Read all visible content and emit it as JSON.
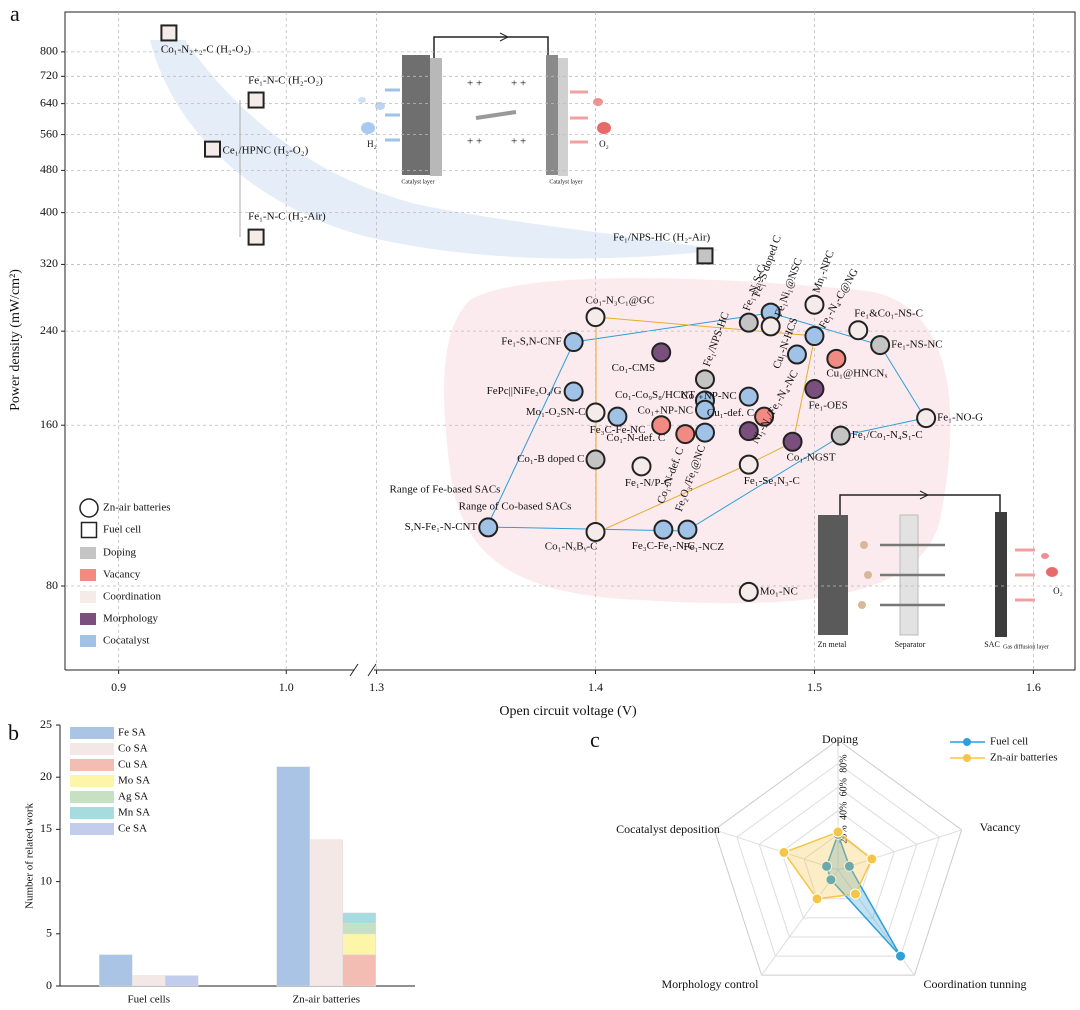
{
  "chart_data": [
    {
      "type": "scatter",
      "panel": "a",
      "xlabel": "Open circuit voltage (V)",
      "ylabel": "Power density (mW/cm²)",
      "yscale": "log",
      "grid": true,
      "xlim_segments": [
        [
          0.868,
          1.044
        ],
        [
          1.297,
          1.619
        ]
      ],
      "xticks": [
        0.9,
        {
          "value": 1,
          "label": "1.0"
        },
        1.3,
        1.4,
        1.5,
        1.6
      ],
      "ylim": [
        55.7,
        950
      ],
      "yticks": [
        80,
        160,
        240,
        320,
        400,
        480,
        560,
        640,
        720,
        800
      ],
      "x": [
        0.93,
        0.982,
        0.956,
        0.982,
        1.45,
        1.4,
        1.39,
        1.43,
        1.39,
        1.4,
        1.41,
        1.43,
        1.441,
        1.4,
        1.421,
        1.351,
        1.4,
        1.431,
        1.442,
        1.47,
        1.45,
        1.45,
        1.45,
        1.47,
        1.45,
        1.477,
        1.47,
        1.47,
        1.49,
        1.512,
        1.551,
        1.53,
        1.52,
        1.51,
        1.5,
        1.5,
        1.5,
        1.492,
        1.47,
        1.48,
        1.48
      ],
      "y": [
        868,
        650,
        526,
        360,
        332,
        255,
        229,
        219,
        185,
        169,
        166,
        160,
        154,
        138,
        134,
        103,
        101,
        102,
        102,
        78,
        195,
        178,
        171,
        181,
        155,
        166,
        156,
        135,
        149,
        153,
        165,
        226,
        241,
        213,
        187,
        269,
        235,
        217,
        249,
        260,
        245
      ],
      "labels": [
        "Co₁-N₂₊₂-C (H₂-O₂)",
        "Fe₁-N-C (H₂-O₂)",
        "Ce₁/HPNC (H₂-O₂)",
        "Fe₁-N-C (H₂-Air)",
        "Fe₁/NPS-HC (H₂-Air)",
        "Co₁-N₃C₁@GC",
        "Fe₁-S,N-CNF",
        "Co₁-CMS",
        "FePc||NiFe₂O₄/G",
        "Mo₁-O₂SN-C",
        "Fe₃C-Fe-NC",
        "Co₁-N-def. C",
        "Co₁-N-def. C",
        "Co₁-B doped C",
        "Fe₁-N/P-C",
        "S,N-Fe₁-N-CNT",
        "Co₁-NₓBᵧ-C",
        "Fe₃C-Fe₁-N-C",
        "Fe₁-NCZ",
        "Mo₁-NC",
        "Fe₁/NPS-HC",
        "Co₁-Co₉S₈/HCNT",
        "Co₁₊NP-NC",
        "Co₁₊NP-NC",
        "Fe₂O₃/Fe₁@NC",
        "Cu₁-def. C",
        "Ni₁-N₄/Fe₁-N₄-NC",
        "Fe₁-Se₁N₃-C",
        "Co₁-NGST",
        "Fe₁/Co₁-N₄S₁-C",
        "Fe₁-NO-G",
        "Fe₁-NS-NC",
        "Fe₁&Co₁-NS-C",
        "Cu₁@HNCNₓ",
        "Fe₁-OES",
        "Mn₁-NPC",
        "Fe₁-N₄-C@NG",
        "Cu₁-N-HCS",
        "Fe₁-N₃S-C",
        "Fe₁-S doped C",
        "Fe₁Ni₁@NSC"
      ],
      "marker": [
        "square",
        "square",
        "square",
        "square",
        "square",
        "circle",
        "circle",
        "circle",
        "circle",
        "circle",
        "circle",
        "circle",
        "circle",
        "circle",
        "circle",
        "circle",
        "circle",
        "circle",
        "circle",
        "circle",
        "circle",
        "circle",
        "circle",
        "circle",
        "circle",
        "circle",
        "circle",
        "circle",
        "circle",
        "circle",
        "circle",
        "circle",
        "circle",
        "circle",
        "circle",
        "circle",
        "circle",
        "circle",
        "circle",
        "circle",
        "circle"
      ],
      "category": [
        "Coordination",
        "Coordination",
        "Coordination",
        "Coordination",
        "Doping",
        "Coordination",
        "Cocatalyst",
        "Morphology",
        "Cocatalyst",
        "Coordination",
        "Cocatalyst",
        "Vacancy",
        "Vacancy",
        "Doping",
        "Coordination",
        "Cocatalyst",
        "Coordination",
        "Cocatalyst",
        "Cocatalyst",
        "Coordination",
        "Doping",
        "Cocatalyst",
        "Cocatalyst",
        "Cocatalyst",
        "Cocatalyst",
        "Vacancy",
        "Morphology",
        "Coordination",
        "Morphology",
        "Doping",
        "Coordination",
        "Doping",
        "Coordination",
        "Vacancy",
        "Morphology",
        "Coordination",
        "Cocatalyst",
        "Cocatalyst",
        "Doping",
        "Cocatalyst",
        "Coordination"
      ],
      "legend": {
        "markers": [
          {
            "name": "Zn-air batteries",
            "marker": "circle"
          },
          {
            "name": "Fuel cell",
            "marker": "square"
          }
        ],
        "fills": [
          {
            "name": "Doping",
            "color": "#c4c4c4"
          },
          {
            "name": "Vacancy",
            "color": "#f08a82"
          },
          {
            "name": "Coordination",
            "color": "#f5ebe9"
          },
          {
            "name": "Morphology",
            "color": "#7b4f7d"
          },
          {
            "name": "Cocatalyst",
            "color": "#9fc2e6"
          }
        ]
      },
      "annotations": [
        {
          "text": "Range of Fe-based SACs",
          "color": "#2b9fd6"
        },
        {
          "text": "Range of Co-based SACs",
          "color": "#e6ad2e"
        },
        {
          "text": "H₂"
        },
        {
          "text": "O₂"
        },
        {
          "text": "Catalyst layer"
        },
        {
          "text": "Catalyst layer"
        },
        {
          "text": "Zn metal"
        },
        {
          "text": "Separator"
        },
        {
          "text": "SAC"
        },
        {
          "text": "Gas diffusion layer"
        },
        {
          "text": "O₂"
        }
      ]
    },
    {
      "type": "bar",
      "panel": "b",
      "ylabel": "Number of related work",
      "categories": [
        "Fuel cells",
        "Zn-air batteries"
      ],
      "ylim": [
        0,
        25
      ],
      "yticks": [
        0,
        5,
        10,
        15,
        20,
        25
      ],
      "series": [
        {
          "name": "Fe SA",
          "color": "#a9c4e4",
          "values": [
            3,
            21
          ]
        },
        {
          "name": "Co SA",
          "color": "#f4e8e6",
          "values": [
            1,
            14
          ]
        },
        {
          "name": "Cu SA",
          "color": "#f3bdb4",
          "values": [
            0,
            3
          ]
        },
        {
          "name": "Mo SA",
          "color": "#fdf5a8",
          "values": [
            0,
            2
          ]
        },
        {
          "name": "Ag SA",
          "color": "#c6e1c2",
          "values": [
            0,
            1
          ]
        },
        {
          "name": "Mn SA",
          "color": "#a6dbe0",
          "values": [
            0,
            1
          ]
        },
        {
          "name": "Ce SA",
          "color": "#c2ccec",
          "values": [
            1,
            0
          ]
        }
      ]
    },
    {
      "type": "radar",
      "panel": "c",
      "axes": [
        "Doping",
        "Vacancy",
        "Coordination tunning",
        "Morphology control",
        "Cocatalyst deposition"
      ],
      "rlim": [
        0,
        100
      ],
      "rticks": [
        {
          "value": 20,
          "label": "20%"
        },
        {
          "value": 40,
          "label": "40%"
        },
        {
          "value": 60,
          "label": "60%"
        },
        {
          "value": 80,
          "label": "80%"
        }
      ],
      "series": [
        {
          "name": "Fuel cell",
          "color": "#2f9fd8",
          "values": [
            20,
            0,
            80,
            0,
            0
          ]
        },
        {
          "name": "Zn-air batteries",
          "color": "#f5c546",
          "values": [
            22,
            20,
            15,
            20,
            38
          ]
        }
      ]
    }
  ]
}
